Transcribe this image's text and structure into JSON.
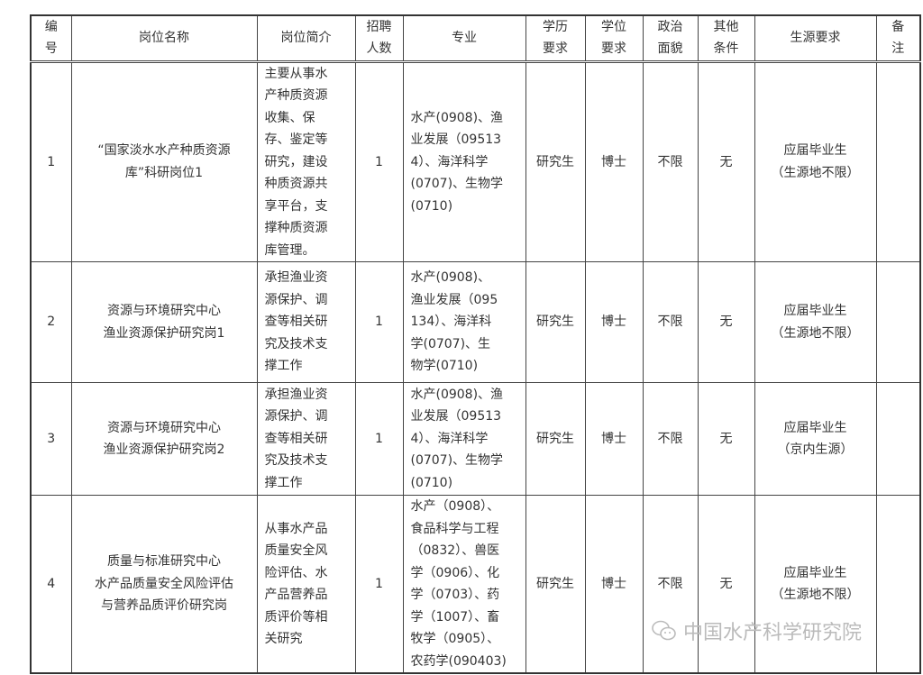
{
  "headers": [
    "编\n号",
    "岗位名称",
    "岗位简介",
    "招聘\n人数",
    "专业",
    "学历\n要求",
    "学位\n要求",
    "政治\n面貌",
    "其他\n条件",
    "生源要求",
    "备\n注"
  ],
  "rows": [
    {
      "no": "1",
      "name": "“国家淡水水产种质资源\n库”科研岗位1",
      "intro": "主要从事水\n产种质资源\n收集、保\n存、鉴定等\n研究，建设\n种质资源共\n享平台，支\n撑种质资源\n库管理。",
      "count": "1",
      "major": "水产(0908)、渔\n业发展（09513\n4）、海洋科学\n(0707)、生物学\n(0710)",
      "edu": "研究生",
      "degree": "博士",
      "politics": "不限",
      "other": "无",
      "source": "应届毕业生\n（生源地不限）",
      "note": ""
    },
    {
      "no": "2",
      "name": "资源与环境研究中心\n渔业资源保护研究岗1",
      "intro": "承担渔业资\n源保护、调\n查等相关研\n究及技术支\n撑工作",
      "count": "1",
      "major": "水产(0908)、\n渔业发展（095\n134）、海洋科\n学(0707)、生\n物学(0710)",
      "edu": "研究生",
      "degree": "博士",
      "politics": "不限",
      "other": "无",
      "source": "应届毕业生\n（生源地不限）",
      "note": ""
    },
    {
      "no": "3",
      "name": "资源与环境研究中心\n渔业资源保护研究岗2",
      "intro": "承担渔业资\n源保护、调\n查等相关研\n究及技术支\n撑工作",
      "count": "1",
      "major": "水产(0908)、渔\n业发展（09513\n4）、海洋科学\n(0707)、生物学\n(0710)",
      "edu": "研究生",
      "degree": "博士",
      "politics": "不限",
      "other": "无",
      "source": "应届毕业生\n（京内生源）",
      "note": ""
    },
    {
      "no": "4",
      "name": "质量与标准研究中心\n水产品质量安全风险评估\n与营养品质评价研究岗",
      "intro": "从事水产品\n质量安全风\n险评估、水\n产品营养品\n质评价等相\n关研究",
      "count": "1",
      "major": "水产（0908）、\n食品科学与工程\n（0832）、兽医\n学（0906）、化\n学（0703）、药\n学（1007）、畜\n牧学（0905）、\n农药学(090403)",
      "edu": "研究生",
      "degree": "博士",
      "politics": "不限",
      "other": "无",
      "source": "应届毕业生\n（生源地不限）",
      "note": ""
    }
  ],
  "watermark": {
    "text": "中国水产科学研究院",
    "icon": "wechat-icon"
  }
}
